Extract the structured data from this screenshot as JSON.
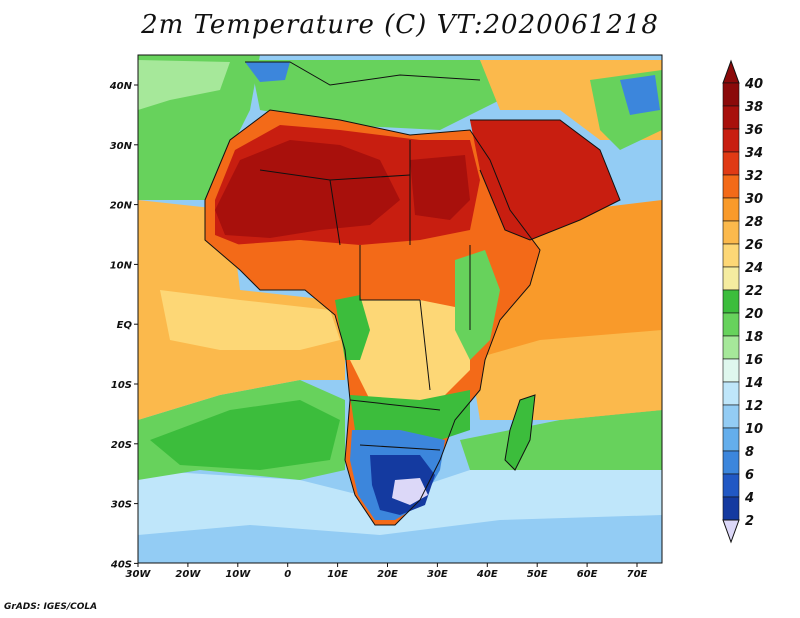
{
  "title": "2m Temperature (C) VT:2020061218",
  "credit": "GrADS: IGES/COLA",
  "lat_labels": [
    "40N",
    "30N",
    "20N",
    "10N",
    "EQ",
    "10S",
    "20S",
    "30S",
    "40S"
  ],
  "lon_labels": [
    "30W",
    "20W",
    "10W",
    "0",
    "10E",
    "20E",
    "30E",
    "40E",
    "50E",
    "60E",
    "70E"
  ],
  "colorbar": {
    "labels": [
      "40",
      "38",
      "36",
      "34",
      "32",
      "30",
      "28",
      "26",
      "24",
      "22",
      "20",
      "18",
      "16",
      "14",
      "12",
      "10",
      "8",
      "6",
      "4",
      "2"
    ],
    "colors": [
      "#8b0a0a",
      "#a8100c",
      "#c81e10",
      "#e03a14",
      "#f36a18",
      "#f99a2a",
      "#fbb94c",
      "#fdd776",
      "#f5eca0",
      "#3cbd3c",
      "#67d25c",
      "#a6e89a",
      "#dff7ee",
      "#bfe6fa",
      "#93ccf4",
      "#64aeec",
      "#3c86dc",
      "#2158c4",
      "#143aa0",
      "#0c1e78"
    ],
    "over_color": "#8b0a0a",
    "under_color": "#dcd8f8"
  },
  "extent": {
    "lon_min": -30,
    "lon_max": 75,
    "lat_min": -40,
    "lat_max": 45
  },
  "fields": {
    "ocean_base": "#93ccf4",
    "regions": [
      {
        "name": "south-ocean-cold",
        "color": "#93ccf4"
      },
      {
        "name": "south-ocean-cool",
        "color": "#bfe6fa"
      },
      {
        "name": "south-atlantic-green",
        "color": "#67d25c"
      },
      {
        "name": "tropical-atlantic",
        "color": "#fbb94c"
      },
      {
        "name": "indian-ocean",
        "color": "#f99a2a"
      },
      {
        "name": "mediterranean",
        "color": "#67d25c"
      },
      {
        "name": "north-atlantic",
        "color": "#67d25c"
      },
      {
        "name": "sahara",
        "color": "#c81e10"
      },
      {
        "name": "sahara-core",
        "color": "#a8100c"
      },
      {
        "name": "arabia",
        "color": "#c81e10"
      },
      {
        "name": "sahel",
        "color": "#f36a18"
      },
      {
        "name": "central-africa",
        "color": "#fdd776"
      },
      {
        "name": "congo-green",
        "color": "#3cbd3c"
      },
      {
        "name": "east-africa-highlands",
        "color": "#67d25c"
      },
      {
        "name": "southern-africa-cool",
        "color": "#3c86dc"
      },
      {
        "name": "southern-africa-cold",
        "color": "#143aa0"
      },
      {
        "name": "madagascar",
        "color": "#3cbd3c"
      }
    ]
  }
}
